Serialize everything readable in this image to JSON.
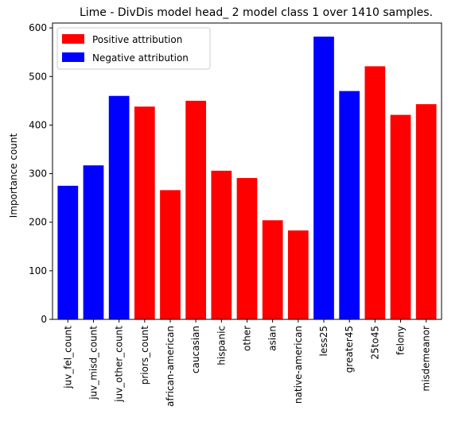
{
  "chart_data": {
    "type": "bar",
    "title": "Lime - DivDis model head_ 2 model class 1 over 1410 samples.",
    "xlabel": "",
    "ylabel": "Importance count",
    "ylim": [
      0,
      610
    ],
    "yticks": [
      0,
      100,
      200,
      300,
      400,
      500,
      600
    ],
    "grid": false,
    "legend_position": "top-left",
    "legend": [
      {
        "label": "Positive attribution",
        "color": "#ff0000"
      },
      {
        "label": "Negative attribution",
        "color": "#0000ff"
      }
    ],
    "categories": [
      "juv_fel_count",
      "juv_misd_count",
      "juv_other_count",
      "priors_count",
      "african-american",
      "caucasian",
      "hispanic",
      "other",
      "asian",
      "native-american",
      "less25",
      "greater45",
      "25to45",
      "felony",
      "misdemeanor"
    ],
    "values": [
      275,
      317,
      460,
      438,
      266,
      450,
      306,
      291,
      204,
      183,
      582,
      470,
      521,
      421,
      443
    ],
    "colors": [
      "#0000ff",
      "#0000ff",
      "#0000ff",
      "#ff0000",
      "#ff0000",
      "#ff0000",
      "#ff0000",
      "#ff0000",
      "#ff0000",
      "#ff0000",
      "#0000ff",
      "#0000ff",
      "#ff0000",
      "#ff0000",
      "#ff0000"
    ]
  }
}
